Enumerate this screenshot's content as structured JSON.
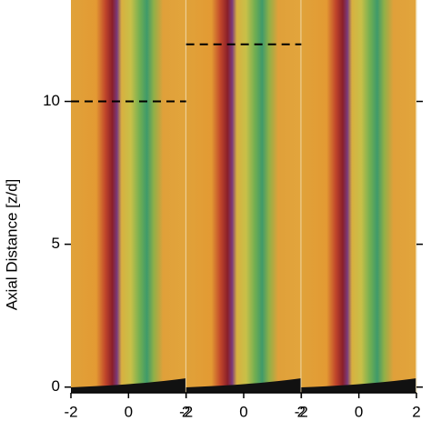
{
  "chart_data": {
    "type": "image",
    "ylabel": "Axial Distance [z/d]",
    "ylim": [
      -0.2,
      13.55
    ],
    "yticks": [
      0,
      5,
      10
    ],
    "panels": [
      {
        "xlim": [
          -2,
          2
        ],
        "xticks": [
          -2,
          0,
          2
        ],
        "cutoff": 10
      },
      {
        "xlim": [
          -2,
          2
        ],
        "xticks": [
          -2,
          0,
          2
        ],
        "cutoff": 12
      },
      {
        "xlim": [
          -2,
          2
        ],
        "xticks": [
          -2,
          0,
          2
        ]
      }
    ]
  }
}
